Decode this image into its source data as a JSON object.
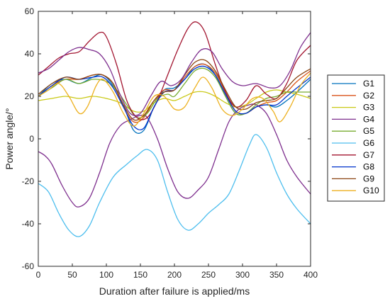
{
  "chart_data": {
    "type": "line",
    "title": "",
    "xlabel": "Duration after failure is applied/ms",
    "ylabel": "Power angle/°",
    "xlim": [
      0,
      400
    ],
    "ylim": [
      -60,
      60
    ],
    "x_ticks": [
      "0",
      "50",
      "100",
      "150",
      "200",
      "250",
      "300",
      "350",
      "400"
    ],
    "y_ticks": [
      "60",
      "40",
      "20",
      "0",
      "-20",
      "-40",
      "-60"
    ],
    "grid": false,
    "legend_position": "right",
    "series": [
      {
        "name": "G1",
        "color": "#0072BD",
        "points": [
          [
            0,
            20
          ],
          [
            20,
            26
          ],
          [
            40,
            28
          ],
          [
            60,
            26
          ],
          [
            80,
            29
          ],
          [
            95,
            30
          ],
          [
            110,
            25
          ],
          [
            125,
            16
          ],
          [
            140,
            4
          ],
          [
            155,
            4
          ],
          [
            170,
            15
          ],
          [
            185,
            23
          ],
          [
            200,
            24
          ],
          [
            215,
            28
          ],
          [
            230,
            34
          ],
          [
            245,
            35
          ],
          [
            260,
            30
          ],
          [
            275,
            20
          ],
          [
            290,
            12
          ],
          [
            305,
            12
          ],
          [
            320,
            15
          ],
          [
            335,
            16
          ],
          [
            350,
            15
          ],
          [
            365,
            18
          ],
          [
            380,
            22
          ],
          [
            400,
            28
          ]
        ]
      },
      {
        "name": "G2",
        "color": "#D95319",
        "points": [
          [
            0,
            20
          ],
          [
            20,
            25
          ],
          [
            40,
            28
          ],
          [
            60,
            28
          ],
          [
            80,
            30
          ],
          [
            95,
            30
          ],
          [
            110,
            26
          ],
          [
            125,
            15
          ],
          [
            140,
            8
          ],
          [
            155,
            10
          ],
          [
            170,
            18
          ],
          [
            185,
            23
          ],
          [
            200,
            23
          ],
          [
            215,
            29
          ],
          [
            230,
            34
          ],
          [
            245,
            35
          ],
          [
            260,
            31
          ],
          [
            275,
            22
          ],
          [
            290,
            13
          ],
          [
            305,
            12
          ],
          [
            320,
            15
          ],
          [
            335,
            17
          ],
          [
            350,
            18
          ],
          [
            365,
            22
          ],
          [
            380,
            27
          ],
          [
            400,
            32
          ]
        ]
      },
      {
        "name": "G3",
        "color": "#c9c917",
        "points": [
          [
            0,
            18
          ],
          [
            20,
            19
          ],
          [
            40,
            20
          ],
          [
            60,
            19
          ],
          [
            80,
            20
          ],
          [
            100,
            19
          ],
          [
            120,
            17
          ],
          [
            140,
            13
          ],
          [
            155,
            13
          ],
          [
            170,
            17
          ],
          [
            185,
            19
          ],
          [
            200,
            18
          ],
          [
            215,
            20
          ],
          [
            230,
            22
          ],
          [
            245,
            22
          ],
          [
            260,
            20
          ],
          [
            275,
            17
          ],
          [
            290,
            15
          ],
          [
            305,
            16
          ],
          [
            320,
            19
          ],
          [
            335,
            22
          ],
          [
            350,
            23
          ],
          [
            365,
            22
          ],
          [
            380,
            21
          ],
          [
            400,
            19
          ]
        ]
      },
      {
        "name": "G4",
        "color": "#7E2F8E",
        "points": [
          [
            0,
            -6
          ],
          [
            10,
            -8
          ],
          [
            20,
            -12
          ],
          [
            35,
            -22
          ],
          [
            50,
            -30
          ],
          [
            60,
            -32
          ],
          [
            75,
            -28
          ],
          [
            90,
            -16
          ],
          [
            105,
            -2
          ],
          [
            120,
            6
          ],
          [
            135,
            9
          ],
          [
            150,
            11
          ],
          [
            160,
            10
          ],
          [
            175,
            0
          ],
          [
            190,
            -14
          ],
          [
            205,
            -25
          ],
          [
            220,
            -28
          ],
          [
            235,
            -24
          ],
          [
            250,
            -18
          ],
          [
            265,
            -5
          ],
          [
            280,
            8
          ],
          [
            295,
            14
          ],
          [
            310,
            16
          ],
          [
            320,
            16
          ],
          [
            335,
            12
          ],
          [
            350,
            2
          ],
          [
            365,
            -10
          ],
          [
            380,
            -18
          ],
          [
            400,
            -26
          ]
        ]
      },
      {
        "name": "G5",
        "color": "#77AC30",
        "points": [
          [
            0,
            20
          ],
          [
            20,
            24
          ],
          [
            40,
            28
          ],
          [
            60,
            26
          ],
          [
            80,
            28
          ],
          [
            100,
            27
          ],
          [
            115,
            23
          ],
          [
            130,
            16
          ],
          [
            145,
            10
          ],
          [
            160,
            12
          ],
          [
            175,
            19
          ],
          [
            190,
            21
          ],
          [
            200,
            20
          ],
          [
            215,
            26
          ],
          [
            230,
            32
          ],
          [
            245,
            33
          ],
          [
            260,
            29
          ],
          [
            275,
            20
          ],
          [
            290,
            12
          ],
          [
            305,
            12
          ],
          [
            320,
            16
          ],
          [
            335,
            19
          ],
          [
            350,
            20
          ],
          [
            365,
            22
          ],
          [
            380,
            22
          ],
          [
            400,
            22
          ]
        ]
      },
      {
        "name": "G6",
        "color": "#4DBEEE",
        "points": [
          [
            0,
            -21
          ],
          [
            15,
            -25
          ],
          [
            30,
            -35
          ],
          [
            45,
            -43
          ],
          [
            60,
            -46
          ],
          [
            75,
            -41
          ],
          [
            90,
            -30
          ],
          [
            110,
            -18
          ],
          [
            130,
            -12
          ],
          [
            145,
            -8
          ],
          [
            160,
            -5
          ],
          [
            175,
            -10
          ],
          [
            190,
            -25
          ],
          [
            205,
            -38
          ],
          [
            220,
            -43
          ],
          [
            235,
            -40
          ],
          [
            250,
            -35
          ],
          [
            265,
            -31
          ],
          [
            280,
            -26
          ],
          [
            295,
            -15
          ],
          [
            310,
            -3
          ],
          [
            320,
            2
          ],
          [
            335,
            -4
          ],
          [
            350,
            -16
          ],
          [
            365,
            -26
          ],
          [
            380,
            -33
          ],
          [
            400,
            -40
          ]
        ]
      },
      {
        "name": "G7",
        "color": "#A2142F",
        "points": [
          [
            0,
            30
          ],
          [
            15,
            34
          ],
          [
            30,
            38
          ],
          [
            45,
            40
          ],
          [
            60,
            41
          ],
          [
            75,
            46
          ],
          [
            90,
            50
          ],
          [
            100,
            48
          ],
          [
            115,
            35
          ],
          [
            130,
            18
          ],
          [
            145,
            10
          ],
          [
            160,
            10
          ],
          [
            175,
            18
          ],
          [
            190,
            30
          ],
          [
            205,
            42
          ],
          [
            220,
            52
          ],
          [
            232,
            55
          ],
          [
            245,
            50
          ],
          [
            260,
            35
          ],
          [
            275,
            22
          ],
          [
            290,
            15
          ],
          [
            305,
            18
          ],
          [
            320,
            25
          ],
          [
            335,
            21
          ],
          [
            350,
            19
          ],
          [
            365,
            26
          ],
          [
            380,
            37
          ],
          [
            400,
            44
          ]
        ]
      },
      {
        "name": "G8",
        "color": "#0033CC",
        "points": [
          [
            0,
            20
          ],
          [
            20,
            25
          ],
          [
            40,
            29
          ],
          [
            60,
            28
          ],
          [
            80,
            29
          ],
          [
            95,
            29
          ],
          [
            110,
            24
          ],
          [
            125,
            15
          ],
          [
            140,
            6
          ],
          [
            155,
            5
          ],
          [
            170,
            15
          ],
          [
            185,
            22
          ],
          [
            200,
            23
          ],
          [
            215,
            28
          ],
          [
            230,
            33
          ],
          [
            245,
            34
          ],
          [
            260,
            30
          ],
          [
            275,
            21
          ],
          [
            290,
            13
          ],
          [
            305,
            12
          ],
          [
            320,
            15
          ],
          [
            335,
            16
          ],
          [
            350,
            16
          ],
          [
            365,
            20
          ],
          [
            380,
            24
          ],
          [
            400,
            29
          ]
        ]
      },
      {
        "name": "G9",
        "color": "#8B4513",
        "points": [
          [
            0,
            21
          ],
          [
            20,
            26
          ],
          [
            40,
            29
          ],
          [
            60,
            28
          ],
          [
            80,
            30
          ],
          [
            95,
            30
          ],
          [
            110,
            26
          ],
          [
            125,
            16
          ],
          [
            140,
            9
          ],
          [
            155,
            11
          ],
          [
            170,
            18
          ],
          [
            185,
            22
          ],
          [
            200,
            23
          ],
          [
            215,
            30
          ],
          [
            230,
            36
          ],
          [
            245,
            37
          ],
          [
            260,
            32
          ],
          [
            275,
            23
          ],
          [
            290,
            15
          ],
          [
            305,
            14
          ],
          [
            320,
            17
          ],
          [
            335,
            18
          ],
          [
            350,
            19
          ],
          [
            365,
            24
          ],
          [
            380,
            29
          ],
          [
            400,
            33
          ]
        ]
      },
      {
        "name": "G10",
        "color": "#EDB120",
        "points": [
          [
            0,
            20
          ],
          [
            15,
            23
          ],
          [
            30,
            26
          ],
          [
            45,
            20
          ],
          [
            60,
            12
          ],
          [
            72,
            15
          ],
          [
            85,
            25
          ],
          [
            95,
            28
          ],
          [
            110,
            22
          ],
          [
            125,
            12
          ],
          [
            140,
            6
          ],
          [
            155,
            12
          ],
          [
            170,
            20
          ],
          [
            185,
            20
          ],
          [
            200,
            14
          ],
          [
            215,
            15
          ],
          [
            230,
            24
          ],
          [
            242,
            29
          ],
          [
            255,
            24
          ],
          [
            270,
            14
          ],
          [
            285,
            11
          ],
          [
            300,
            14
          ],
          [
            315,
            19
          ],
          [
            330,
            19
          ],
          [
            345,
            13
          ],
          [
            355,
            8
          ],
          [
            370,
            15
          ],
          [
            385,
            25
          ],
          [
            400,
            31
          ]
        ]
      },
      {
        "name": "",
        "color": "#7E2F8E",
        "points": [
          [
            0,
            31
          ],
          [
            15,
            33
          ],
          [
            30,
            37
          ],
          [
            45,
            41
          ],
          [
            60,
            43
          ],
          [
            75,
            42
          ],
          [
            90,
            40
          ],
          [
            105,
            33
          ],
          [
            120,
            21
          ],
          [
            135,
            12
          ],
          [
            150,
            12
          ],
          [
            165,
            20
          ],
          [
            180,
            27
          ],
          [
            195,
            25
          ],
          [
            210,
            28
          ],
          [
            225,
            36
          ],
          [
            240,
            42
          ],
          [
            255,
            41
          ],
          [
            270,
            33
          ],
          [
            285,
            27
          ],
          [
            300,
            25
          ],
          [
            320,
            26
          ],
          [
            340,
            24
          ],
          [
            355,
            25
          ],
          [
            370,
            32
          ],
          [
            385,
            43
          ],
          [
            400,
            50
          ]
        ]
      }
    ]
  },
  "legend": {
    "items": [
      "G1",
      "G2",
      "G3",
      "G4",
      "G5",
      "G6",
      "G7",
      "G8",
      "G9",
      "G10"
    ],
    "colors": [
      "#0072BD",
      "#D95319",
      "#c9c917",
      "#7E2F8E",
      "#77AC30",
      "#4DBEEE",
      "#A2142F",
      "#0033CC",
      "#8B4513",
      "#EDB120"
    ]
  }
}
